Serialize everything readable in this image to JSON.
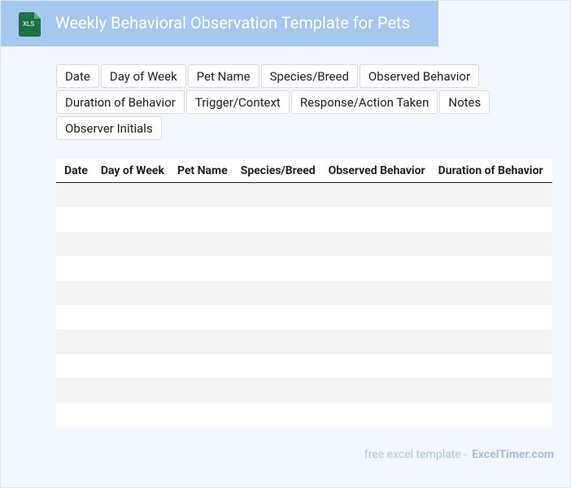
{
  "header": {
    "icon_label": "XLS",
    "title": "Weekly Behavioral Observation Template for Pets"
  },
  "fields": [
    "Date",
    "Day of Week",
    "Pet Name",
    "Species/Breed",
    "Observed Behavior",
    "Duration of Behavior",
    "Trigger/Context",
    "Response/Action Taken",
    "Notes",
    "Observer Initials"
  ],
  "table": {
    "columns": [
      "Date",
      "Day of Week",
      "Pet Name",
      "Species/Breed",
      "Observed Behavior",
      "Duration of Behavior"
    ]
  },
  "footer": {
    "prefix": "free excel template -",
    "site": "ExcelTimer.com"
  }
}
